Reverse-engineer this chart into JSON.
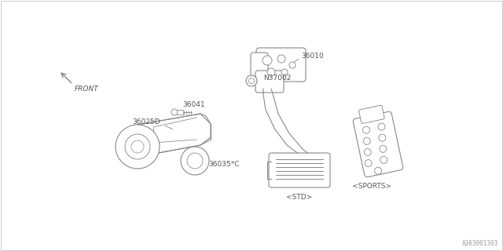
{
  "bg_color": "#ffffff",
  "line_color": "#888888",
  "text_color": "#555555",
  "title_text": "A363001303",
  "labels": {
    "front": "FRONT",
    "36010": "36010",
    "N37002": "N37002",
    "36041": "36041",
    "36025D": "36025D",
    "36035C": "36035*C",
    "STD": "<STD>",
    "SPORTS": "<SPORTS>"
  },
  "figsize": [
    6.4,
    3.2
  ],
  "dpi": 100
}
